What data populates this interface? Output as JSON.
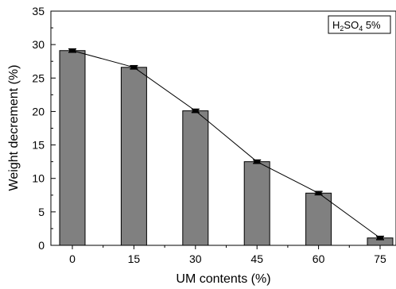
{
  "chart_data": {
    "type": "bar",
    "categories": [
      "0",
      "15",
      "30",
      "45",
      "60",
      "75"
    ],
    "values": [
      29.1,
      26.6,
      20.1,
      12.5,
      7.8,
      1.1
    ],
    "errors": [
      0.25,
      0.25,
      0.25,
      0.25,
      0.25,
      0.25
    ],
    "title": "",
    "xlabel": "UM contents (%)",
    "ylabel": "Weight decrement (%)",
    "ylim": [
      0,
      35
    ],
    "yticks": [
      0,
      5,
      10,
      15,
      20,
      25,
      30,
      35
    ],
    "legend": {
      "formula": {
        "h": "H",
        "sub1": "2",
        "mid": "SO",
        "sub2": "4"
      },
      "suffix": " 5%",
      "position": "top-right"
    },
    "grid": false,
    "connect_line": true,
    "colors": {
      "bar_fill": "#808080",
      "bar_stroke": "#000000",
      "line": "#000000"
    }
  }
}
